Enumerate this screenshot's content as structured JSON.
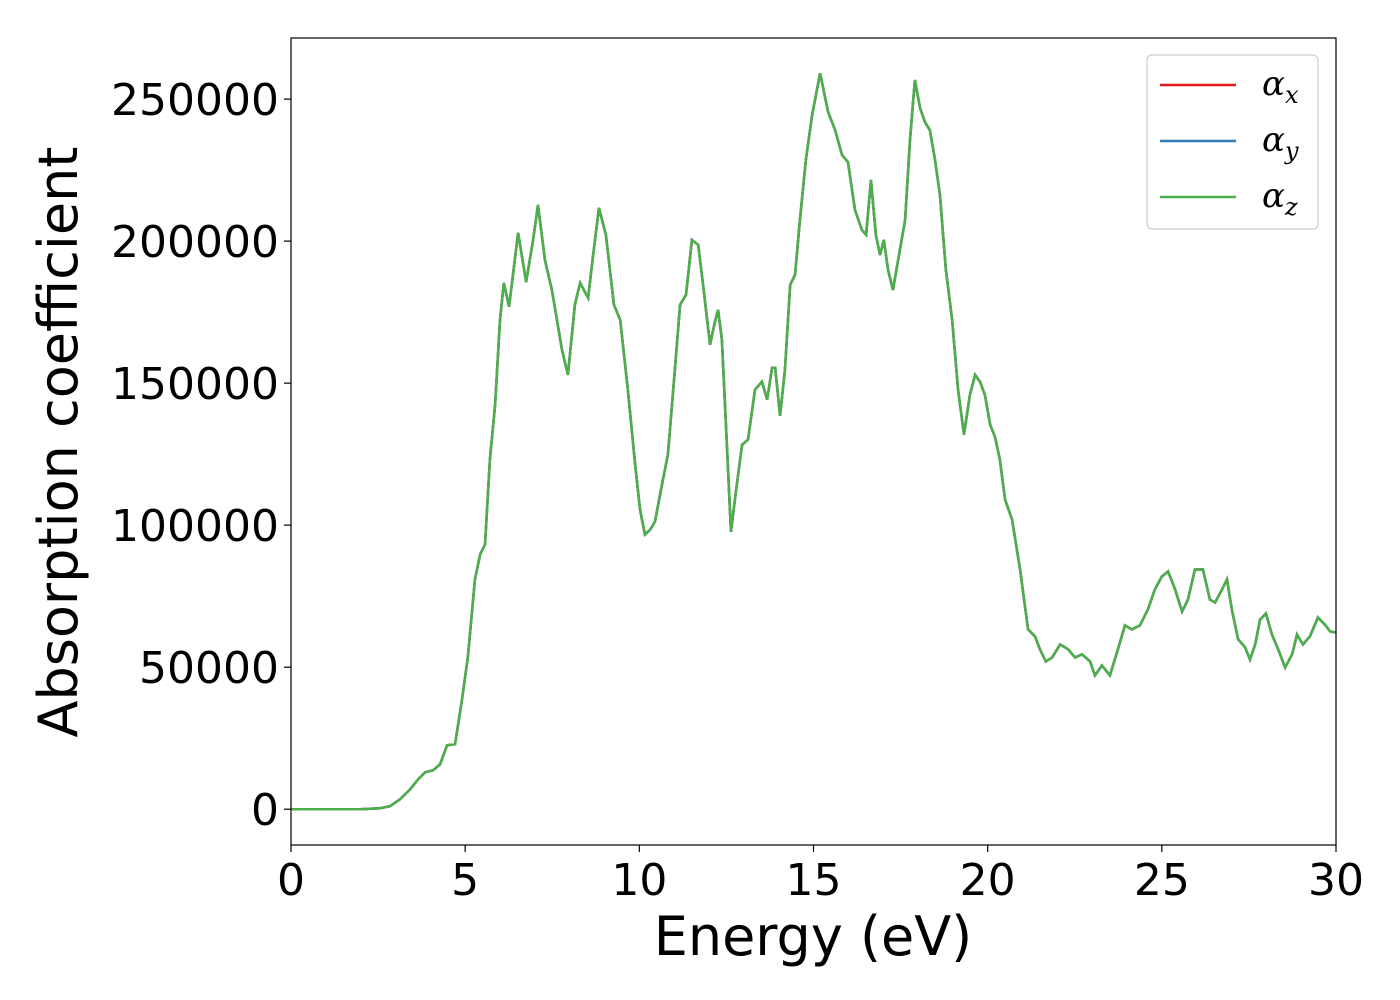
{
  "chart_data": {
    "type": "line",
    "xlabel": "Energy (eV)",
    "ylabel": "Absorption coefficient",
    "xlim": [
      0,
      30
    ],
    "xticks": [
      0,
      5,
      10,
      15,
      20,
      25,
      30
    ],
    "ylim": [
      -12600,
      271500
    ],
    "yticks": [
      0,
      50000,
      100000,
      150000,
      200000,
      250000
    ],
    "legend": "upper right",
    "x": [
      0,
      1.98,
      2.56,
      2.84,
      3.13,
      3.42,
      3.65,
      3.85,
      4.08,
      4.28,
      4.48,
      4.71,
      4.91,
      5.08,
      5.28,
      5.43,
      5.57,
      5.71,
      5.86,
      6.0,
      6.11,
      6.26,
      6.52,
      6.75,
      6.95,
      7.09,
      7.29,
      7.49,
      7.78,
      7.95,
      8.15,
      8.3,
      8.53,
      8.64,
      8.84,
      9.04,
      9.27,
      9.45,
      9.67,
      9.88,
      10.02,
      10.16,
      10.31,
      10.45,
      10.65,
      10.82,
      11.02,
      11.17,
      11.34,
      11.51,
      11.69,
      11.83,
      12.03,
      12.17,
      12.26,
      12.37,
      12.52,
      12.63,
      12.78,
      12.95,
      13.12,
      13.32,
      13.52,
      13.67,
      13.81,
      13.9,
      14.04,
      14.18,
      14.33,
      14.47,
      14.61,
      14.78,
      14.96,
      15.19,
      15.42,
      15.62,
      15.82,
      15.99,
      16.19,
      16.39,
      16.51,
      16.65,
      16.79,
      16.91,
      17.02,
      17.14,
      17.28,
      17.48,
      17.63,
      17.77,
      17.91,
      18.06,
      18.2,
      18.34,
      18.49,
      18.63,
      18.8,
      18.98,
      19.15,
      19.32,
      19.49,
      19.64,
      19.78,
      19.92,
      20.07,
      20.21,
      20.35,
      20.5,
      20.7,
      20.93,
      21.16,
      21.36,
      21.5,
      21.67,
      21.85,
      22.08,
      22.31,
      22.51,
      22.71,
      22.94,
      23.08,
      23.28,
      23.51,
      23.74,
      23.94,
      24.14,
      24.37,
      24.6,
      24.8,
      25.0,
      25.18,
      25.38,
      25.58,
      25.75,
      25.95,
      26.18,
      26.38,
      26.53,
      26.73,
      26.87,
      27.01,
      27.19,
      27.39,
      27.53,
      27.68,
      27.82,
      27.99,
      28.16,
      28.34,
      28.54,
      28.74,
      28.88,
      29.05,
      29.25,
      29.48,
      29.68,
      29.83,
      30.0
    ],
    "series": [
      {
        "name": "αx",
        "color": "#e41a1c",
        "values": [
          0,
          0,
          350,
          1050,
          3500,
          7000,
          10500,
          13000,
          13700,
          15800,
          22500,
          22900,
          38700,
          53800,
          80900,
          89700,
          93200,
          123100,
          142400,
          172300,
          185300,
          176900,
          202900,
          185600,
          200400,
          212700,
          193400,
          182800,
          161700,
          152900,
          177600,
          185300,
          180000,
          191600,
          211700,
          202200,
          177600,
          172300,
          147700,
          121300,
          105500,
          96700,
          98400,
          101300,
          114300,
          124800,
          154700,
          177600,
          181100,
          200400,
          198700,
          184600,
          163500,
          171600,
          175800,
          165300,
          126600,
          97700,
          112500,
          128300,
          130100,
          147700,
          150500,
          144200,
          155400,
          155400,
          138500,
          154700,
          184600,
          188100,
          207400,
          228500,
          244400,
          259100,
          245400,
          239100,
          230300,
          227800,
          211000,
          203900,
          202200,
          221500,
          202200,
          195100,
          200400,
          189900,
          182800,
          196900,
          207400,
          235600,
          256700,
          246800,
          241900,
          239100,
          228500,
          216200,
          189900,
          172300,
          147700,
          131900,
          145900,
          152900,
          150500,
          145900,
          135400,
          131100,
          123100,
          109000,
          102000,
          84400,
          63300,
          60800,
          56300,
          52000,
          53400,
          58000,
          56300,
          53400,
          54500,
          52000,
          47100,
          50600,
          47100,
          56300,
          64700,
          63300,
          64700,
          70300,
          77400,
          81900,
          83700,
          77400,
          69600,
          73800,
          84400,
          84400,
          73800,
          72800,
          77400,
          80900,
          70300,
          59800,
          57000,
          52700,
          58000,
          66800,
          68900,
          61500,
          56300,
          49900,
          54500,
          61500,
          58000,
          60800,
          67500,
          65000,
          62600,
          62200
        ]
      },
      {
        "name": "αy",
        "color": "#377eb8",
        "values": [
          0,
          0,
          350,
          1050,
          3500,
          7000,
          10500,
          13000,
          13700,
          15800,
          22500,
          22900,
          38700,
          53800,
          80900,
          89700,
          93200,
          123100,
          142400,
          172300,
          185300,
          176900,
          202900,
          185600,
          200400,
          212700,
          193400,
          182800,
          161700,
          152900,
          177600,
          185300,
          180000,
          191600,
          211700,
          202200,
          177600,
          172300,
          147700,
          121300,
          105500,
          96700,
          98400,
          101300,
          114300,
          124800,
          154700,
          177600,
          181100,
          200400,
          198700,
          184600,
          163500,
          171600,
          175800,
          165300,
          126600,
          97700,
          112500,
          128300,
          130100,
          147700,
          150500,
          144200,
          155400,
          155400,
          138500,
          154700,
          184600,
          188100,
          207400,
          228500,
          244400,
          259100,
          245400,
          239100,
          230300,
          227800,
          211000,
          203900,
          202200,
          221500,
          202200,
          195100,
          200400,
          189900,
          182800,
          196900,
          207400,
          235600,
          256700,
          246800,
          241900,
          239100,
          228500,
          216200,
          189900,
          172300,
          147700,
          131900,
          145900,
          152900,
          150500,
          145900,
          135400,
          131100,
          123100,
          109000,
          102000,
          84400,
          63300,
          60800,
          56300,
          52000,
          53400,
          58000,
          56300,
          53400,
          54500,
          52000,
          47100,
          50600,
          47100,
          56300,
          64700,
          63300,
          64700,
          70300,
          77400,
          81900,
          83700,
          77400,
          69600,
          73800,
          84400,
          84400,
          73800,
          72800,
          77400,
          80900,
          70300,
          59800,
          57000,
          52700,
          58000,
          66800,
          68900,
          61500,
          56300,
          49900,
          54500,
          61500,
          58000,
          60800,
          67500,
          65000,
          62600,
          62200
        ]
      },
      {
        "name": "αz",
        "color": "#4daf4a",
        "values": [
          0,
          0,
          350,
          1050,
          3500,
          7000,
          10500,
          13000,
          13700,
          15800,
          22500,
          22900,
          38700,
          53800,
          80900,
          89700,
          93200,
          123100,
          142400,
          172300,
          185300,
          176900,
          202900,
          185600,
          200400,
          212700,
          193400,
          182800,
          161700,
          152900,
          177600,
          185300,
          180000,
          191600,
          211700,
          202200,
          177600,
          172300,
          147700,
          121300,
          105500,
          96700,
          98400,
          101300,
          114300,
          124800,
          154700,
          177600,
          181100,
          200400,
          198700,
          184600,
          163500,
          171600,
          175800,
          165300,
          126600,
          97700,
          112500,
          128300,
          130100,
          147700,
          150500,
          144200,
          155400,
          155400,
          138500,
          154700,
          184600,
          188100,
          207400,
          228500,
          244400,
          259100,
          245400,
          239100,
          230300,
          227800,
          211000,
          203900,
          202200,
          221500,
          202200,
          195100,
          200400,
          189900,
          182800,
          196900,
          207400,
          235600,
          256700,
          246800,
          241900,
          239100,
          228500,
          216200,
          189900,
          172300,
          147700,
          131900,
          145900,
          152900,
          150500,
          145900,
          135400,
          131100,
          123100,
          109000,
          102000,
          84400,
          63300,
          60800,
          56300,
          52000,
          53400,
          58000,
          56300,
          53400,
          54500,
          52000,
          47100,
          50600,
          47100,
          56300,
          64700,
          63300,
          64700,
          70300,
          77400,
          81900,
          83700,
          77400,
          69600,
          73800,
          84400,
          84400,
          73800,
          72800,
          77400,
          80900,
          70300,
          59800,
          57000,
          52700,
          58000,
          66800,
          68900,
          61500,
          56300,
          49900,
          54500,
          61500,
          58000,
          60800,
          67500,
          65000,
          62600,
          62200
        ]
      }
    ]
  }
}
